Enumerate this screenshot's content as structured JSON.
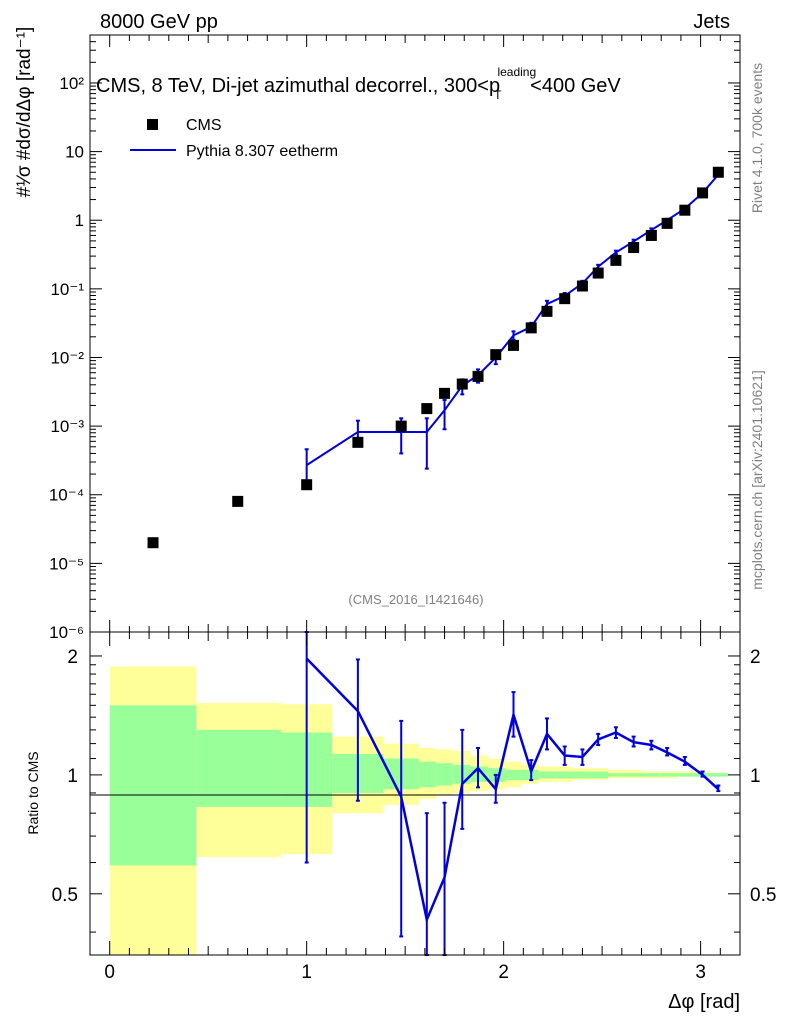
{
  "header": {
    "left": "8000 GeV pp",
    "right": "Jets"
  },
  "chart_data": {
    "type": "scatter",
    "title": "CMS, 8 TeV, Di-jet azimuthal decorrel., 300<p",
    "title_sup": "leading",
    "title_sub": "T",
    "title_tail": "<400 GeV",
    "analysis_id": "(CMS_2016_I1421646)",
    "side_label_top": "Rivet 4.1.0,  700k events",
    "side_label_bottom": "mcplots.cern.ch [arXiv:2401.10621]",
    "xlabel": "Δφ [rad]",
    "ylabel": "#¹⁄σ #dσ/dΔφ [rad⁻¹]",
    "ratio_ylabel": "Ratio to CMS",
    "xlim": [
      -0.1,
      3.2
    ],
    "ylim_log": [
      1e-06,
      500
    ],
    "ratio_ylim": [
      0.35,
      2.3
    ],
    "x_ticks": [
      "0",
      "1",
      "2",
      "3"
    ],
    "y_ticks": [
      "10⁻⁶",
      "10⁻⁵",
      "10⁻⁴",
      "10⁻³",
      "10⁻²",
      "10⁻¹",
      "1",
      "10",
      "10²"
    ],
    "ratio_ticks": [
      "0.5",
      "1",
      "2"
    ],
    "legend": [
      {
        "name": "CMS",
        "color": "#000000",
        "marker": "square"
      },
      {
        "name": "Pythia 8.307 eetherm",
        "color": "#0000dd",
        "marker": "line"
      }
    ],
    "cms": {
      "x": [
        0.22,
        0.65,
        1.0,
        1.26,
        1.48,
        1.61,
        1.7,
        1.79,
        1.87,
        1.96,
        2.05,
        2.14,
        2.22,
        2.31,
        2.4,
        2.48,
        2.57,
        2.66,
        2.75,
        2.83,
        2.92,
        3.01,
        3.09
      ],
      "y": [
        2e-05,
        8e-05,
        0.00014,
        0.00058,
        0.001,
        0.0018,
        0.003,
        0.0041,
        0.0053,
        0.011,
        0.015,
        0.027,
        0.047,
        0.072,
        0.11,
        0.17,
        0.26,
        0.4,
        0.6,
        0.9,
        1.4,
        2.5,
        5.0
      ]
    },
    "pythia": {
      "x": [
        1.0,
        1.26,
        1.48,
        1.61,
        1.7,
        1.79,
        1.87,
        1.96,
        2.05,
        2.14,
        2.22,
        2.31,
        2.4,
        2.48,
        2.57,
        2.66,
        2.75,
        2.83,
        2.92,
        3.01,
        3.09
      ],
      "y": [
        0.00027,
        0.00082,
        0.00082,
        0.00082,
        0.0017,
        0.0039,
        0.0055,
        0.01,
        0.021,
        0.028,
        0.06,
        0.079,
        0.12,
        0.21,
        0.34,
        0.49,
        0.72,
        1.0,
        1.47,
        2.5,
        4.6
      ],
      "ylo": [
        0.00014,
        0.00056,
        0.0004,
        0.00024,
        0.0009,
        0.0029,
        0.0043,
        0.008,
        0.018,
        0.024,
        0.053,
        0.071,
        0.109,
        0.196,
        0.32,
        0.46,
        0.68,
        0.95,
        1.4,
        2.4,
        4.4
      ],
      "yhi": [
        0.00046,
        0.0012,
        0.0013,
        0.0013,
        0.0024,
        0.0048,
        0.0067,
        0.012,
        0.024,
        0.032,
        0.067,
        0.087,
        0.131,
        0.224,
        0.36,
        0.52,
        0.76,
        1.05,
        1.54,
        2.6,
        4.8
      ]
    },
    "ratio": {
      "x": [
        1.0,
        1.26,
        1.48,
        1.61,
        1.7,
        1.79,
        1.87,
        1.96,
        2.05,
        2.14,
        2.22,
        2.31,
        2.4,
        2.48,
        2.57,
        2.66,
        2.75,
        2.83,
        2.92,
        3.01,
        3.09
      ],
      "y": [
        1.97,
        1.45,
        0.88,
        0.43,
        0.55,
        0.95,
        1.04,
        0.92,
        1.42,
        1.02,
        1.27,
        1.12,
        1.11,
        1.23,
        1.28,
        1.21,
        1.19,
        1.14,
        1.08,
        1.0,
        0.92
      ],
      "ylo": [
        0.6,
        0.86,
        0.39,
        0.3,
        0.3,
        0.73,
        0.93,
        0.85,
        1.25,
        0.97,
        1.16,
        1.06,
        1.06,
        1.19,
        1.24,
        1.18,
        1.16,
        1.12,
        1.06,
        0.99,
        0.91
      ],
      "yhi": [
        2.3,
        1.96,
        1.37,
        0.8,
        0.85,
        1.3,
        1.17,
        1.0,
        1.62,
        1.09,
        1.39,
        1.18,
        1.16,
        1.27,
        1.32,
        1.25,
        1.22,
        1.17,
        1.11,
        1.02,
        0.94
      ]
    },
    "bands": {
      "edges": [
        0.0,
        0.44,
        0.87,
        1.13,
        1.39,
        1.57,
        1.66,
        1.74,
        1.83,
        1.92,
        2.01,
        2.09,
        2.18,
        2.27,
        2.35,
        2.44,
        2.53,
        2.61,
        2.7,
        2.79,
        2.88,
        2.96,
        3.05,
        3.14
      ],
      "outer_lo": [
        0.35,
        0.62,
        0.63,
        0.8,
        0.84,
        0.87,
        0.89,
        0.9,
        0.91,
        0.92,
        0.93,
        0.95,
        0.96,
        0.96,
        0.97,
        0.97,
        0.98,
        0.98,
        0.98,
        0.98,
        0.99,
        0.99,
        0.99
      ],
      "outer_hi": [
        1.88,
        1.52,
        1.51,
        1.25,
        1.2,
        1.17,
        1.16,
        1.15,
        1.12,
        1.1,
        1.08,
        1.06,
        1.05,
        1.05,
        1.04,
        1.04,
        1.03,
        1.03,
        1.02,
        1.02,
        1.02,
        1.02,
        1.01
      ],
      "inner_lo": [
        0.59,
        0.83,
        0.83,
        0.9,
        0.92,
        0.93,
        0.94,
        0.95,
        0.96,
        0.96,
        0.97,
        0.97,
        0.98,
        0.98,
        0.98,
        0.98,
        0.99,
        0.99,
        0.99,
        0.99,
        0.99,
        0.99,
        0.99
      ],
      "inner_hi": [
        1.5,
        1.3,
        1.28,
        1.13,
        1.1,
        1.08,
        1.07,
        1.06,
        1.05,
        1.04,
        1.03,
        1.03,
        1.02,
        1.02,
        1.02,
        1.02,
        1.01,
        1.01,
        1.01,
        1.01,
        1.01,
        1.01,
        1.01
      ],
      "outer_color": "#ffff99",
      "inner_color": "#99ff99"
    }
  }
}
